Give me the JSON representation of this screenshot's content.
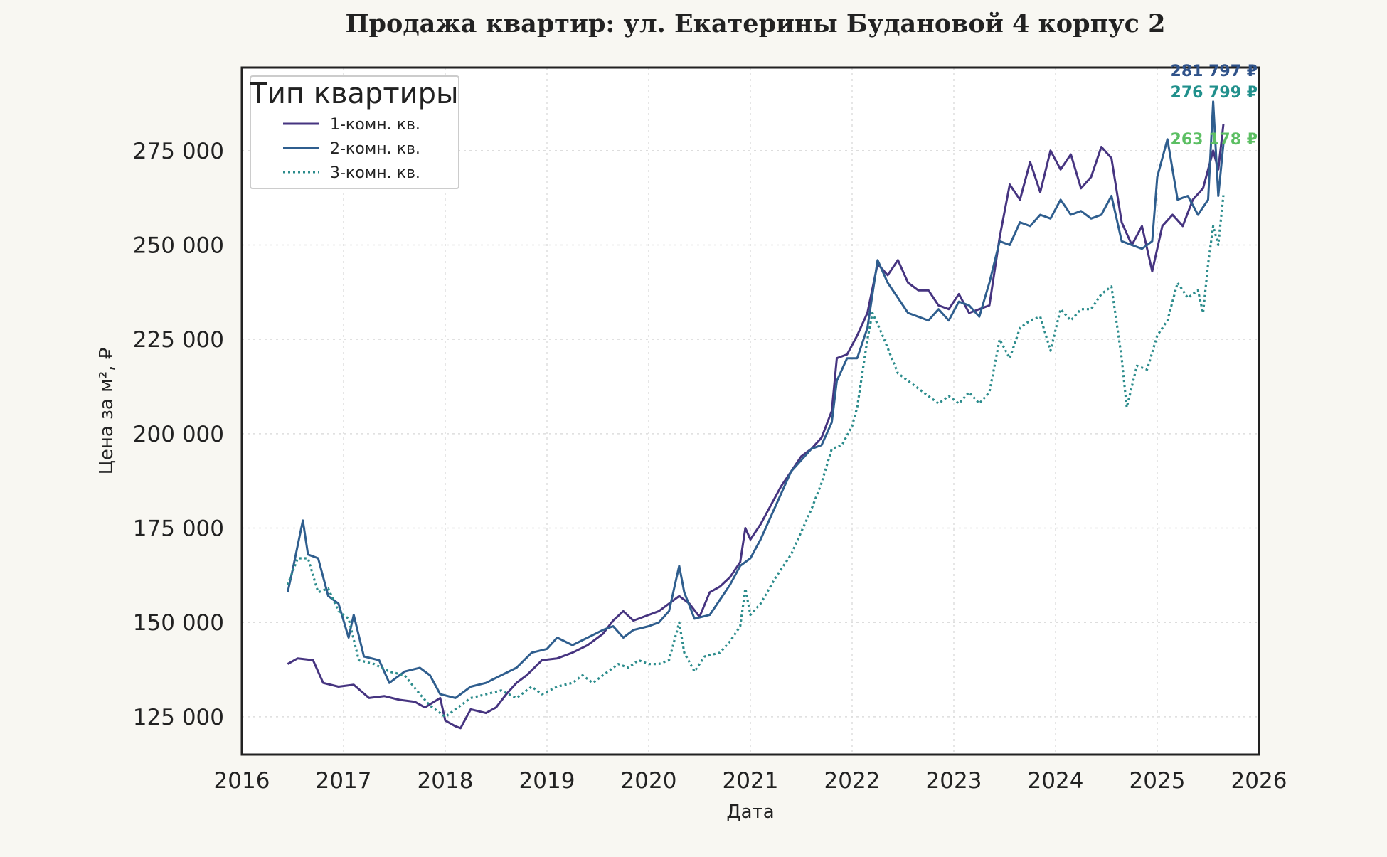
{
  "chart_data": {
    "type": "line",
    "title": "Продажа квартир: ул. Екатерины Будановой 4 корпус 2",
    "xlabel": "Дата",
    "ylabel": "Цена за м², ₽",
    "xlim": [
      2016,
      2026
    ],
    "ylim": [
      115000,
      297000
    ],
    "x_ticks": [
      "2016",
      "2017",
      "2018",
      "2019",
      "2020",
      "2021",
      "2022",
      "2023",
      "2024",
      "2025",
      "2026"
    ],
    "y_ticks": [
      {
        "value": 125000,
        "label": "125 000"
      },
      {
        "value": 150000,
        "label": "150 000"
      },
      {
        "value": 175000,
        "label": "175 000"
      },
      {
        "value": 200000,
        "label": "200 000"
      },
      {
        "value": 225000,
        "label": "225 000"
      },
      {
        "value": 250000,
        "label": "250 000"
      },
      {
        "value": 275000,
        "label": "275 000"
      }
    ],
    "grid": true,
    "legend": {
      "title": "Тип квартиры",
      "placement": "top-left"
    },
    "series": [
      {
        "name": "1-комн. кв.",
        "color": "#463480",
        "style": "solid",
        "end_label": "281 797 ₽",
        "points": [
          [
            2016.45,
            139000
          ],
          [
            2016.55,
            140500
          ],
          [
            2016.7,
            140000
          ],
          [
            2016.8,
            134000
          ],
          [
            2016.95,
            133000
          ],
          [
            2017.1,
            133500
          ],
          [
            2017.25,
            130000
          ],
          [
            2017.4,
            130500
          ],
          [
            2017.55,
            129500
          ],
          [
            2017.7,
            129000
          ],
          [
            2017.8,
            127500
          ],
          [
            2017.95,
            130000
          ],
          [
            2018.0,
            124000
          ],
          [
            2018.1,
            122500
          ],
          [
            2018.15,
            122000
          ],
          [
            2018.25,
            127000
          ],
          [
            2018.4,
            126000
          ],
          [
            2018.5,
            127500
          ],
          [
            2018.6,
            131000
          ],
          [
            2018.7,
            134000
          ],
          [
            2018.8,
            136000
          ],
          [
            2018.95,
            140000
          ],
          [
            2019.1,
            140500
          ],
          [
            2019.25,
            142000
          ],
          [
            2019.4,
            144000
          ],
          [
            2019.55,
            147000
          ],
          [
            2019.65,
            150500
          ],
          [
            2019.75,
            153000
          ],
          [
            2019.85,
            150500
          ],
          [
            2020.0,
            152000
          ],
          [
            2020.1,
            153000
          ],
          [
            2020.2,
            155000
          ],
          [
            2020.3,
            157000
          ],
          [
            2020.4,
            155000
          ],
          [
            2020.5,
            151500
          ],
          [
            2020.6,
            158000
          ],
          [
            2020.7,
            159500
          ],
          [
            2020.8,
            162000
          ],
          [
            2020.9,
            166000
          ],
          [
            2020.95,
            175000
          ],
          [
            2021.0,
            172000
          ],
          [
            2021.1,
            176000
          ],
          [
            2021.2,
            181000
          ],
          [
            2021.3,
            186000
          ],
          [
            2021.4,
            190000
          ],
          [
            2021.5,
            194000
          ],
          [
            2021.6,
            196000
          ],
          [
            2021.7,
            199000
          ],
          [
            2021.8,
            206000
          ],
          [
            2021.85,
            220000
          ],
          [
            2021.95,
            221000
          ],
          [
            2022.05,
            226000
          ],
          [
            2022.15,
            232000
          ],
          [
            2022.25,
            245000
          ],
          [
            2022.35,
            242000
          ],
          [
            2022.45,
            246000
          ],
          [
            2022.55,
            240000
          ],
          [
            2022.65,
            238000
          ],
          [
            2022.75,
            238000
          ],
          [
            2022.85,
            234000
          ],
          [
            2022.95,
            233000
          ],
          [
            2023.05,
            237000
          ],
          [
            2023.15,
            232000
          ],
          [
            2023.25,
            233000
          ],
          [
            2023.35,
            234000
          ],
          [
            2023.45,
            252000
          ],
          [
            2023.55,
            266000
          ],
          [
            2023.65,
            262000
          ],
          [
            2023.75,
            272000
          ],
          [
            2023.85,
            264000
          ],
          [
            2023.95,
            275000
          ],
          [
            2024.05,
            270000
          ],
          [
            2024.15,
            274000
          ],
          [
            2024.25,
            265000
          ],
          [
            2024.35,
            268000
          ],
          [
            2024.45,
            276000
          ],
          [
            2024.55,
            273000
          ],
          [
            2024.65,
            256000
          ],
          [
            2024.75,
            250000
          ],
          [
            2024.85,
            255000
          ],
          [
            2024.95,
            243000
          ],
          [
            2025.05,
            255000
          ],
          [
            2025.15,
            258000
          ],
          [
            2025.25,
            255000
          ],
          [
            2025.35,
            262000
          ],
          [
            2025.45,
            265000
          ],
          [
            2025.55,
            275000
          ],
          [
            2025.6,
            270000
          ],
          [
            2025.65,
            282000
          ]
        ]
      },
      {
        "name": "2-комн. кв.",
        "color": "#2f5e8e",
        "style": "solid",
        "end_label": "276 799 ₽",
        "points": [
          [
            2016.45,
            158000
          ],
          [
            2016.5,
            164000
          ],
          [
            2016.6,
            177000
          ],
          [
            2016.65,
            168000
          ],
          [
            2016.75,
            167000
          ],
          [
            2016.85,
            157000
          ],
          [
            2016.95,
            155000
          ],
          [
            2017.05,
            146000
          ],
          [
            2017.1,
            152000
          ],
          [
            2017.2,
            141000
          ],
          [
            2017.35,
            140000
          ],
          [
            2017.45,
            134000
          ],
          [
            2017.6,
            137000
          ],
          [
            2017.75,
            138000
          ],
          [
            2017.85,
            136000
          ],
          [
            2017.95,
            131000
          ],
          [
            2018.1,
            130000
          ],
          [
            2018.25,
            133000
          ],
          [
            2018.4,
            134000
          ],
          [
            2018.55,
            136000
          ],
          [
            2018.7,
            138000
          ],
          [
            2018.85,
            142000
          ],
          [
            2019.0,
            143000
          ],
          [
            2019.1,
            146000
          ],
          [
            2019.25,
            144000
          ],
          [
            2019.4,
            146000
          ],
          [
            2019.55,
            148000
          ],
          [
            2019.65,
            149000
          ],
          [
            2019.75,
            146000
          ],
          [
            2019.85,
            148000
          ],
          [
            2020.0,
            149000
          ],
          [
            2020.1,
            150000
          ],
          [
            2020.2,
            153000
          ],
          [
            2020.3,
            165000
          ],
          [
            2020.35,
            158000
          ],
          [
            2020.45,
            151000
          ],
          [
            2020.6,
            152000
          ],
          [
            2020.7,
            156000
          ],
          [
            2020.8,
            160000
          ],
          [
            2020.9,
            165000
          ],
          [
            2021.0,
            167000
          ],
          [
            2021.1,
            172000
          ],
          [
            2021.2,
            178000
          ],
          [
            2021.3,
            184000
          ],
          [
            2021.4,
            190000
          ],
          [
            2021.5,
            193000
          ],
          [
            2021.6,
            196000
          ],
          [
            2021.7,
            197000
          ],
          [
            2021.8,
            203000
          ],
          [
            2021.85,
            214000
          ],
          [
            2021.95,
            220000
          ],
          [
            2022.05,
            220000
          ],
          [
            2022.15,
            228000
          ],
          [
            2022.25,
            246000
          ],
          [
            2022.35,
            240000
          ],
          [
            2022.45,
            236000
          ],
          [
            2022.55,
            232000
          ],
          [
            2022.65,
            231000
          ],
          [
            2022.75,
            230000
          ],
          [
            2022.85,
            233000
          ],
          [
            2022.95,
            230000
          ],
          [
            2023.05,
            235000
          ],
          [
            2023.15,
            234000
          ],
          [
            2023.25,
            231000
          ],
          [
            2023.35,
            240000
          ],
          [
            2023.45,
            251000
          ],
          [
            2023.55,
            250000
          ],
          [
            2023.65,
            256000
          ],
          [
            2023.75,
            255000
          ],
          [
            2023.85,
            258000
          ],
          [
            2023.95,
            257000
          ],
          [
            2024.05,
            262000
          ],
          [
            2024.15,
            258000
          ],
          [
            2024.25,
            259000
          ],
          [
            2024.35,
            257000
          ],
          [
            2024.45,
            258000
          ],
          [
            2024.55,
            263000
          ],
          [
            2024.65,
            251000
          ],
          [
            2024.75,
            250000
          ],
          [
            2024.85,
            249000
          ],
          [
            2024.95,
            251000
          ],
          [
            2025.0,
            268000
          ],
          [
            2025.1,
            278000
          ],
          [
            2025.2,
            262000
          ],
          [
            2025.3,
            263000
          ],
          [
            2025.4,
            258000
          ],
          [
            2025.5,
            262000
          ],
          [
            2025.55,
            288000
          ],
          [
            2025.6,
            263000
          ],
          [
            2025.65,
            276800
          ]
        ]
      },
      {
        "name": "3-комн. кв.",
        "color": "#2c8c8c",
        "style": "dotted",
        "end_label": "263 178 ₽",
        "points": [
          [
            2016.45,
            160000
          ],
          [
            2016.55,
            167000
          ],
          [
            2016.65,
            167000
          ],
          [
            2016.75,
            158000
          ],
          [
            2016.85,
            159000
          ],
          [
            2016.95,
            153000
          ],
          [
            2017.05,
            151000
          ],
          [
            2017.15,
            140000
          ],
          [
            2017.3,
            139000
          ],
          [
            2017.45,
            137000
          ],
          [
            2017.6,
            136000
          ],
          [
            2017.75,
            131000
          ],
          [
            2017.85,
            128000
          ],
          [
            2018.0,
            125000
          ],
          [
            2018.1,
            127000
          ],
          [
            2018.25,
            130000
          ],
          [
            2018.4,
            131000
          ],
          [
            2018.55,
            132000
          ],
          [
            2018.7,
            130000
          ],
          [
            2018.85,
            133000
          ],
          [
            2018.95,
            131000
          ],
          [
            2019.1,
            133000
          ],
          [
            2019.25,
            134000
          ],
          [
            2019.35,
            136000
          ],
          [
            2019.45,
            134000
          ],
          [
            2019.6,
            137000
          ],
          [
            2019.7,
            139000
          ],
          [
            2019.8,
            138000
          ],
          [
            2019.9,
            140000
          ],
          [
            2020.0,
            139000
          ],
          [
            2020.1,
            139000
          ],
          [
            2020.2,
            140000
          ],
          [
            2020.3,
            150000
          ],
          [
            2020.35,
            142000
          ],
          [
            2020.45,
            137000
          ],
          [
            2020.55,
            141000
          ],
          [
            2020.7,
            142000
          ],
          [
            2020.8,
            145000
          ],
          [
            2020.9,
            149000
          ],
          [
            2020.95,
            159000
          ],
          [
            2021.0,
            152000
          ],
          [
            2021.1,
            155000
          ],
          [
            2021.25,
            162000
          ],
          [
            2021.4,
            168000
          ],
          [
            2021.5,
            174000
          ],
          [
            2021.6,
            180000
          ],
          [
            2021.7,
            187000
          ],
          [
            2021.8,
            196000
          ],
          [
            2021.9,
            197000
          ],
          [
            2022.0,
            202000
          ],
          [
            2022.05,
            207000
          ],
          [
            2022.15,
            225000
          ],
          [
            2022.2,
            232000
          ],
          [
            2022.3,
            226000
          ],
          [
            2022.45,
            216000
          ],
          [
            2022.6,
            213000
          ],
          [
            2022.7,
            211000
          ],
          [
            2022.85,
            208000
          ],
          [
            2022.95,
            210000
          ],
          [
            2023.05,
            208000
          ],
          [
            2023.15,
            211000
          ],
          [
            2023.25,
            208000
          ],
          [
            2023.35,
            211000
          ],
          [
            2023.45,
            225000
          ],
          [
            2023.55,
            220000
          ],
          [
            2023.65,
            228000
          ],
          [
            2023.75,
            230000
          ],
          [
            2023.85,
            231000
          ],
          [
            2023.95,
            222000
          ],
          [
            2024.05,
            233000
          ],
          [
            2024.15,
            230000
          ],
          [
            2024.25,
            233000
          ],
          [
            2024.35,
            233000
          ],
          [
            2024.45,
            237000
          ],
          [
            2024.55,
            239000
          ],
          [
            2024.65,
            220000
          ],
          [
            2024.7,
            207000
          ],
          [
            2024.8,
            218000
          ],
          [
            2024.9,
            217000
          ],
          [
            2025.0,
            226000
          ],
          [
            2025.1,
            230000
          ],
          [
            2025.2,
            240000
          ],
          [
            2025.3,
            236000
          ],
          [
            2025.4,
            238000
          ],
          [
            2025.45,
            232000
          ],
          [
            2025.5,
            245000
          ],
          [
            2025.55,
            255000
          ],
          [
            2025.6,
            250000
          ],
          [
            2025.65,
            263178
          ]
        ]
      }
    ]
  }
}
